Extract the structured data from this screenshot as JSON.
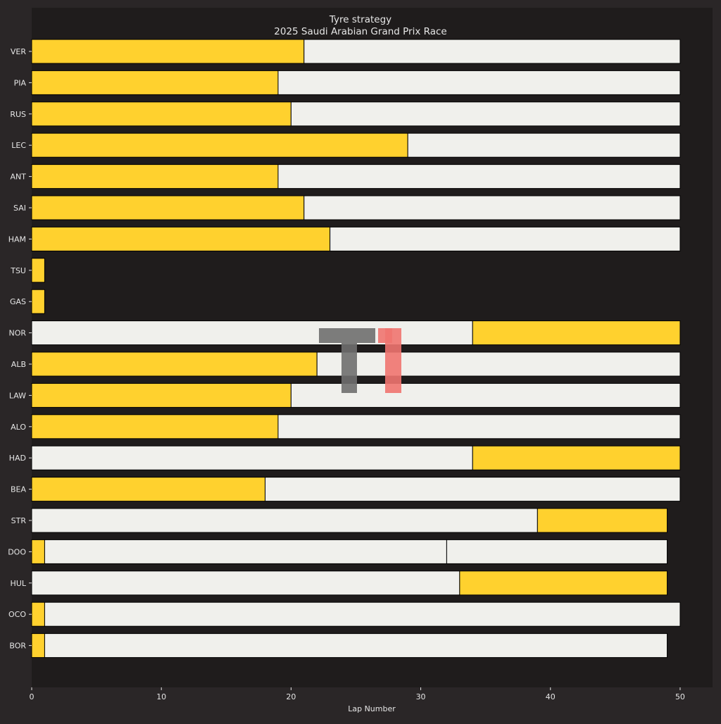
{
  "chart_data": {
    "type": "bar",
    "title": "Tyre strategy",
    "subtitle": "2025 Saudi Arabian Grand Prix Race",
    "xlabel": "Lap Number",
    "ylabel": "",
    "xlim": [
      0,
      52.5
    ],
    "xticks": [
      0,
      10,
      20,
      30,
      40,
      50
    ],
    "grid": false,
    "colors": {
      "page_background": "#2a2627",
      "plot_background": "#1f1c1c",
      "MEDIUM": "#ffd12e",
      "HARD": "#f0f0ec",
      "text": "#e6e6e6",
      "stint_edge": "#000000"
    },
    "drivers": [
      {
        "driver": "VER",
        "stints": [
          {
            "compound": "MEDIUM",
            "start": 0,
            "end": 21
          },
          {
            "compound": "HARD",
            "start": 21,
            "end": 50
          }
        ]
      },
      {
        "driver": "PIA",
        "stints": [
          {
            "compound": "MEDIUM",
            "start": 0,
            "end": 19
          },
          {
            "compound": "HARD",
            "start": 19,
            "end": 50
          }
        ]
      },
      {
        "driver": "RUS",
        "stints": [
          {
            "compound": "MEDIUM",
            "start": 0,
            "end": 20
          },
          {
            "compound": "HARD",
            "start": 20,
            "end": 50
          }
        ]
      },
      {
        "driver": "LEC",
        "stints": [
          {
            "compound": "MEDIUM",
            "start": 0,
            "end": 29
          },
          {
            "compound": "HARD",
            "start": 29,
            "end": 50
          }
        ]
      },
      {
        "driver": "ANT",
        "stints": [
          {
            "compound": "MEDIUM",
            "start": 0,
            "end": 19
          },
          {
            "compound": "HARD",
            "start": 19,
            "end": 50
          }
        ]
      },
      {
        "driver": "SAI",
        "stints": [
          {
            "compound": "MEDIUM",
            "start": 0,
            "end": 21
          },
          {
            "compound": "HARD",
            "start": 21,
            "end": 50
          }
        ]
      },
      {
        "driver": "HAM",
        "stints": [
          {
            "compound": "MEDIUM",
            "start": 0,
            "end": 23
          },
          {
            "compound": "HARD",
            "start": 23,
            "end": 50
          }
        ]
      },
      {
        "driver": "TSU",
        "stints": [
          {
            "compound": "MEDIUM",
            "start": 0,
            "end": 1
          }
        ]
      },
      {
        "driver": "GAS",
        "stints": [
          {
            "compound": "MEDIUM",
            "start": 0,
            "end": 1
          }
        ]
      },
      {
        "driver": "NOR",
        "stints": [
          {
            "compound": "HARD",
            "start": 0,
            "end": 34
          },
          {
            "compound": "MEDIUM",
            "start": 34,
            "end": 50
          }
        ]
      },
      {
        "driver": "ALB",
        "stints": [
          {
            "compound": "MEDIUM",
            "start": 0,
            "end": 22
          },
          {
            "compound": "HARD",
            "start": 22,
            "end": 50
          }
        ]
      },
      {
        "driver": "LAW",
        "stints": [
          {
            "compound": "MEDIUM",
            "start": 0,
            "end": 20
          },
          {
            "compound": "HARD",
            "start": 20,
            "end": 50
          }
        ]
      },
      {
        "driver": "ALO",
        "stints": [
          {
            "compound": "MEDIUM",
            "start": 0,
            "end": 19
          },
          {
            "compound": "HARD",
            "start": 19,
            "end": 50
          }
        ]
      },
      {
        "driver": "HAD",
        "stints": [
          {
            "compound": "HARD",
            "start": 0,
            "end": 34
          },
          {
            "compound": "MEDIUM",
            "start": 34,
            "end": 50
          }
        ]
      },
      {
        "driver": "BEA",
        "stints": [
          {
            "compound": "MEDIUM",
            "start": 0,
            "end": 18
          },
          {
            "compound": "HARD",
            "start": 18,
            "end": 50
          }
        ]
      },
      {
        "driver": "STR",
        "stints": [
          {
            "compound": "HARD",
            "start": 0,
            "end": 39
          },
          {
            "compound": "MEDIUM",
            "start": 39,
            "end": 49
          }
        ]
      },
      {
        "driver": "DOO",
        "stints": [
          {
            "compound": "MEDIUM",
            "start": 0,
            "end": 1
          },
          {
            "compound": "HARD",
            "start": 1,
            "end": 32
          },
          {
            "compound": "HARD",
            "start": 32,
            "end": 49
          }
        ]
      },
      {
        "driver": "HUL",
        "stints": [
          {
            "compound": "HARD",
            "start": 0,
            "end": 33
          },
          {
            "compound": "MEDIUM",
            "start": 33,
            "end": 49
          }
        ]
      },
      {
        "driver": "OCO",
        "stints": [
          {
            "compound": "MEDIUM",
            "start": 0,
            "end": 1
          },
          {
            "compound": "HARD",
            "start": 1,
            "end": 50
          }
        ]
      },
      {
        "driver": "BOR",
        "stints": [
          {
            "compound": "MEDIUM",
            "start": 0,
            "end": 1
          },
          {
            "compound": "HARD",
            "start": 1,
            "end": 49
          }
        ]
      }
    ]
  },
  "watermark": {
    "text": "T1",
    "colors": {
      "t": "#6f6f6f",
      "one": "#f07470"
    }
  }
}
